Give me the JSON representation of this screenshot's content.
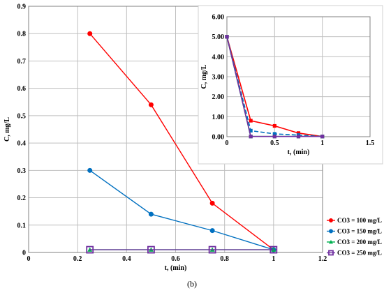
{
  "caption": "(b)",
  "chart_data": [
    {
      "type": "line",
      "xlabel": "t, (min)",
      "ylabel": "C, mg/L",
      "xlim": [
        0,
        1.2
      ],
      "ylim": [
        0,
        0.9
      ],
      "x_ticks": [
        "0",
        "0.2",
        "0.4",
        "0.6",
        "0.8",
        "1",
        "1.2"
      ],
      "y_ticks": [
        "0",
        "0.1",
        "0.2",
        "0.3",
        "0.4",
        "0.5",
        "0.6",
        "0.7",
        "0.8",
        "0.9"
      ],
      "grid": true,
      "legend_position": "right",
      "series": [
        {
          "name": "CO3 = 100 mg/L",
          "color": "#ff0000",
          "marker": "circle",
          "dash": "none",
          "x": [
            0.25,
            0.5,
            0.75,
            1.0
          ],
          "y": [
            0.8,
            0.54,
            0.18,
            0.01
          ]
        },
        {
          "name": "CO3 = 150 mg/L",
          "color": "#0070c0",
          "marker": "circle",
          "dash": "none",
          "x": [
            0.25,
            0.5,
            0.75,
            1.0
          ],
          "y": [
            0.3,
            0.14,
            0.08,
            0.01
          ]
        },
        {
          "name": "CO3 = 200 mg/L",
          "color": "#00b050",
          "marker": "triangle",
          "dash": "none",
          "x": [
            0.25,
            0.5,
            0.75,
            1.0
          ],
          "y": [
            0.01,
            0.01,
            0.01,
            0.01
          ]
        },
        {
          "name": "CO3 = 250 mg/L",
          "color": "#7030a0",
          "marker": "square",
          "dash": "none",
          "x": [
            0.25,
            0.5,
            0.75,
            1.0
          ],
          "y": [
            0.01,
            0.01,
            0.01,
            0.01
          ]
        }
      ]
    },
    {
      "type": "line",
      "xlabel": "t, (min)",
      "ylabel": "C, mg/L",
      "xlim": [
        0,
        1.5
      ],
      "ylim": [
        0,
        6
      ],
      "x_ticks": [
        "0",
        "0.5",
        "1",
        "1.5"
      ],
      "y_ticks": [
        "0.00",
        "1.00",
        "2.00",
        "3.00",
        "4.00",
        "5.00",
        "6.00"
      ],
      "grid": true,
      "series": [
        {
          "name": "CO3 = 100 mg/L",
          "color": "#ff0000",
          "marker": "square",
          "dash": "none",
          "x": [
            0,
            0.25,
            0.5,
            0.75,
            1.0
          ],
          "y": [
            5.0,
            0.8,
            0.54,
            0.18,
            0.01
          ]
        },
        {
          "name": "CO3 = 150 mg/L",
          "color": "#0070c0",
          "marker": "square",
          "dash": "6,3",
          "x": [
            0,
            0.25,
            0.5,
            0.75,
            1.0
          ],
          "y": [
            5.0,
            0.3,
            0.14,
            0.08,
            0.01
          ]
        },
        {
          "name": "CO3 = 200 mg/L",
          "color": "#00b050",
          "marker": "square",
          "dash": "none",
          "x": [
            0,
            0.25,
            0.5,
            0.75,
            1.0
          ],
          "y": [
            5.0,
            0.01,
            0.01,
            0.01,
            0.01
          ]
        },
        {
          "name": "CO3 = 250 mg/L",
          "color": "#7030a0",
          "marker": "square",
          "dash": "none",
          "x": [
            0,
            0.25,
            0.5,
            0.75,
            1.0
          ],
          "y": [
            5.0,
            0.01,
            0.01,
            0.01,
            0.01
          ]
        }
      ]
    }
  ]
}
